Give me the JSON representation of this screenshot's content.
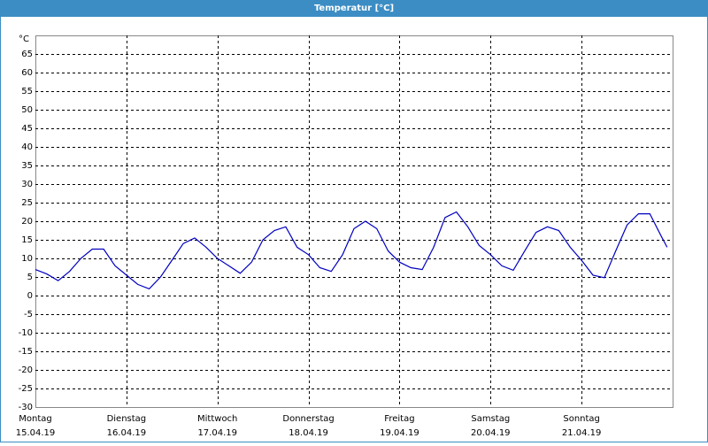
{
  "chart_data": {
    "type": "line",
    "title": "Temperatur [°C]",
    "y_label": "°C",
    "x": [
      0,
      0.125,
      0.25,
      0.375,
      0.5,
      0.625,
      0.75,
      0.875,
      1,
      1.125,
      1.25,
      1.375,
      1.5,
      1.625,
      1.75,
      1.875,
      2,
      2.125,
      2.25,
      2.375,
      2.5,
      2.625,
      2.75,
      2.875,
      3,
      3.125,
      3.25,
      3.375,
      3.5,
      3.625,
      3.75,
      3.875,
      4,
      4.125,
      4.25,
      4.375,
      4.5,
      4.625,
      4.75,
      4.875,
      5,
      5.125,
      5.25,
      5.375,
      5.5,
      5.625,
      5.75,
      5.875,
      6,
      6.125,
      6.25,
      6.375,
      6.5,
      6.625,
      6.75,
      6.875,
      6.94
    ],
    "series": [
      {
        "color": "#0000c0",
        "values": [
          7,
          5.8,
          4,
          6.5,
          10,
          12.5,
          12.5,
          8,
          5.5,
          3,
          1.8,
          5,
          9.5,
          14,
          15.5,
          13,
          10,
          8,
          6,
          9,
          15,
          17.5,
          18.5,
          13,
          11,
          7.5,
          6.5,
          11,
          18,
          20,
          18,
          12,
          9,
          7.5,
          7,
          13,
          21,
          22.5,
          18.5,
          13.5,
          11,
          8,
          6.8,
          12,
          17,
          18.5,
          17.5,
          13,
          9.5,
          5.5,
          4.8,
          12,
          19,
          22,
          22,
          16,
          13
        ]
      }
    ],
    "xlim": [
      0,
      7
    ],
    "xticks": [
      {
        "value": 0,
        "label": "Montag"
      },
      {
        "value": 1,
        "label": "Dienstag"
      },
      {
        "value": 2,
        "label": "Mittwoch"
      },
      {
        "value": 3,
        "label": "Donnerstag"
      },
      {
        "value": 4,
        "label": "Freitag"
      },
      {
        "value": 5,
        "label": "Samstag"
      },
      {
        "value": 6,
        "label": "Sonntag"
      }
    ],
    "xtick_dates": [
      "15.04.19",
      "16.04.19",
      "17.04.19",
      "18.04.19",
      "19.04.19",
      "20.04.19",
      "21.04.19"
    ],
    "ylim": [
      -30,
      70
    ],
    "yticks": [
      -30,
      -25,
      -20,
      -15,
      -10,
      -5,
      0,
      5,
      10,
      15,
      20,
      25,
      30,
      35,
      40,
      45,
      50,
      55,
      60,
      65
    ],
    "grid": true
  }
}
